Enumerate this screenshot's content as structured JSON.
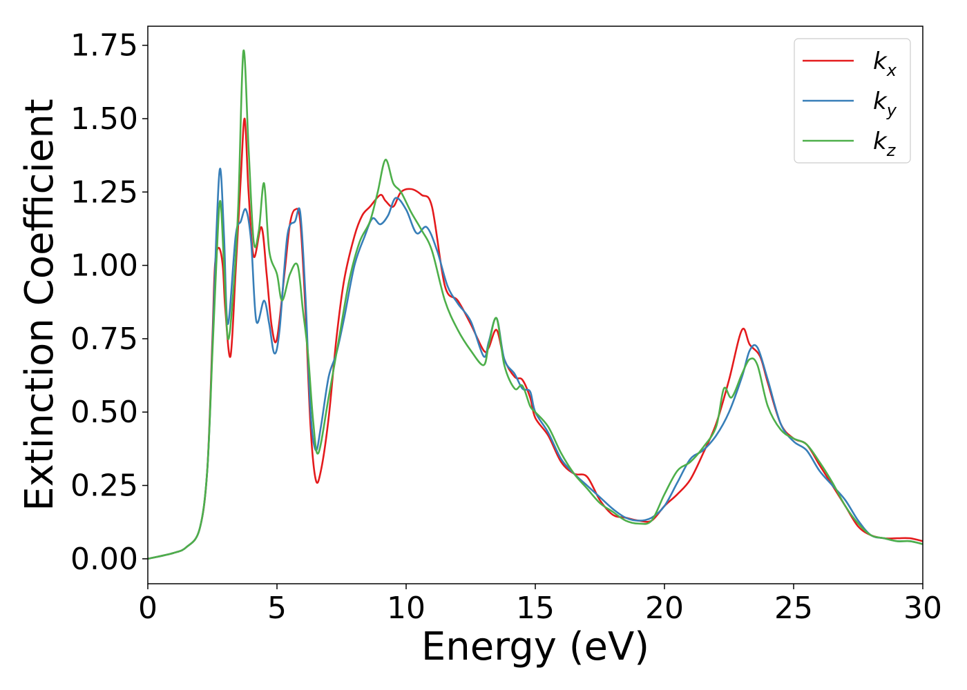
{
  "chart_data": {
    "type": "line",
    "title": "",
    "xlabel": "Energy (eV)",
    "ylabel": "Extinction Coefficient",
    "xlim": [
      0,
      30
    ],
    "ylim": [
      -0.085,
      1.815
    ],
    "xticks": [
      0,
      5,
      10,
      15,
      20,
      25,
      30
    ],
    "xtick_labels": [
      "0",
      "5",
      "10",
      "15",
      "20",
      "25",
      "30"
    ],
    "yticks": [
      0.0,
      0.25,
      0.5,
      0.75,
      1.0,
      1.25,
      1.5,
      1.75
    ],
    "ytick_labels": [
      "0.00",
      "0.25",
      "0.50",
      "0.75",
      "1.00",
      "1.25",
      "1.50",
      "1.75"
    ],
    "grid": false,
    "legend_position": "top-right",
    "series": [
      {
        "name": "k",
        "subscript": "x",
        "color": "#e41a1c",
        "x": [
          0,
          1,
          1.5,
          2,
          2.3,
          2.5,
          2.6,
          2.75,
          2.9,
          3.0,
          3.2,
          3.4,
          3.6,
          3.75,
          3.9,
          4.1,
          4.4,
          4.6,
          4.8,
          5.0,
          5.3,
          5.5,
          5.7,
          5.9,
          6.1,
          6.3,
          6.5,
          6.7,
          7.0,
          7.3,
          7.6,
          8.0,
          8.3,
          8.6,
          9.0,
          9.2,
          9.5,
          9.8,
          10.2,
          10.6,
          11.0,
          11.5,
          12.0,
          12.5,
          13.0,
          13.2,
          13.5,
          13.8,
          14.2,
          14.5,
          14.8,
          15.0,
          15.5,
          16.0,
          16.5,
          17.0,
          17.5,
          18.0,
          18.5,
          19.0,
          19.5,
          20.0,
          20.5,
          21.0,
          21.5,
          22.0,
          22.5,
          23.0,
          23.3,
          23.7,
          24.0,
          24.5,
          25.0,
          25.5,
          26.0,
          26.5,
          27.0,
          27.5,
          28.0,
          28.5,
          29.0,
          29.5,
          30.0
        ],
        "y": [
          0,
          0.02,
          0.04,
          0.1,
          0.3,
          0.75,
          1.0,
          1.06,
          1.0,
          0.85,
          0.69,
          0.98,
          1.3,
          1.5,
          1.25,
          1.03,
          1.13,
          0.97,
          0.79,
          0.75,
          0.98,
          1.14,
          1.19,
          1.15,
          0.85,
          0.45,
          0.27,
          0.3,
          0.48,
          0.75,
          0.95,
          1.1,
          1.17,
          1.2,
          1.24,
          1.22,
          1.2,
          1.25,
          1.26,
          1.24,
          1.2,
          0.93,
          0.88,
          0.8,
          0.71,
          0.72,
          0.78,
          0.68,
          0.62,
          0.61,
          0.55,
          0.48,
          0.42,
          0.33,
          0.29,
          0.28,
          0.2,
          0.15,
          0.14,
          0.13,
          0.13,
          0.18,
          0.22,
          0.27,
          0.36,
          0.46,
          0.61,
          0.78,
          0.73,
          0.69,
          0.6,
          0.46,
          0.41,
          0.39,
          0.32,
          0.25,
          0.18,
          0.11,
          0.08,
          0.07,
          0.07,
          0.07,
          0.06
        ]
      },
      {
        "name": "k",
        "subscript": "y",
        "color": "#377eb8",
        "x": [
          0,
          1,
          1.5,
          2,
          2.3,
          2.5,
          2.65,
          2.8,
          2.95,
          3.1,
          3.4,
          3.6,
          3.8,
          4.0,
          4.2,
          4.5,
          4.7,
          4.9,
          5.1,
          5.4,
          5.7,
          5.9,
          6.1,
          6.3,
          6.5,
          6.7,
          7.0,
          7.3,
          7.6,
          8.0,
          8.4,
          8.7,
          9.0,
          9.3,
          9.6,
          10.0,
          10.4,
          10.8,
          11.2,
          11.6,
          12.0,
          12.5,
          13.0,
          13.2,
          13.5,
          13.8,
          14.2,
          14.5,
          14.8,
          15.0,
          15.5,
          16.0,
          16.5,
          17.0,
          17.5,
          18.0,
          18.5,
          19.0,
          19.5,
          20.0,
          20.5,
          21.0,
          21.5,
          22.0,
          22.5,
          23.0,
          23.3,
          23.6,
          24.0,
          24.5,
          25.0,
          25.5,
          26.0,
          26.5,
          27.0,
          27.5,
          28.0,
          28.5,
          29.0,
          29.5,
          30.0
        ],
        "y": [
          0,
          0.02,
          0.04,
          0.1,
          0.3,
          0.72,
          1.1,
          1.33,
          1.1,
          0.8,
          1.1,
          1.15,
          1.19,
          1.08,
          0.81,
          0.88,
          0.8,
          0.7,
          0.78,
          1.1,
          1.15,
          1.18,
          0.9,
          0.5,
          0.37,
          0.45,
          0.62,
          0.7,
          0.82,
          1.0,
          1.1,
          1.16,
          1.14,
          1.17,
          1.23,
          1.19,
          1.11,
          1.13,
          1.05,
          0.93,
          0.87,
          0.81,
          0.69,
          0.74,
          0.82,
          0.68,
          0.63,
          0.58,
          0.57,
          0.5,
          0.43,
          0.34,
          0.29,
          0.25,
          0.21,
          0.17,
          0.14,
          0.13,
          0.14,
          0.18,
          0.26,
          0.34,
          0.37,
          0.42,
          0.5,
          0.62,
          0.71,
          0.72,
          0.61,
          0.46,
          0.4,
          0.37,
          0.3,
          0.25,
          0.2,
          0.13,
          0.08,
          0.07,
          0.06,
          0.06,
          0.05
        ]
      },
      {
        "name": "k",
        "subscript": "z",
        "color": "#4daf4a",
        "x": [
          0,
          1,
          1.5,
          2,
          2.3,
          2.5,
          2.65,
          2.8,
          2.95,
          3.1,
          3.3,
          3.5,
          3.7,
          3.9,
          4.1,
          4.3,
          4.5,
          4.7,
          5.0,
          5.2,
          5.5,
          5.8,
          6.0,
          6.2,
          6.4,
          6.6,
          7.0,
          7.4,
          7.8,
          8.2,
          8.6,
          8.9,
          9.2,
          9.5,
          9.8,
          10.2,
          10.6,
          11.0,
          11.5,
          12.0,
          12.5,
          13.0,
          13.2,
          13.5,
          13.8,
          14.2,
          14.5,
          14.8,
          15.0,
          15.5,
          16.0,
          16.5,
          17.0,
          17.5,
          18.0,
          18.5,
          19.0,
          19.5,
          20.0,
          20.5,
          21.0,
          21.5,
          22.0,
          22.3,
          22.6,
          23.0,
          23.3,
          23.6,
          24.0,
          24.5,
          25.0,
          25.5,
          26.0,
          26.5,
          27.0,
          27.5,
          28.0,
          28.5,
          29.0,
          29.5,
          30.0
        ],
        "y": [
          0,
          0.02,
          0.04,
          0.1,
          0.3,
          0.7,
          1.0,
          1.22,
          1.0,
          0.75,
          0.9,
          1.2,
          1.73,
          1.4,
          1.08,
          1.12,
          1.28,
          1.05,
          0.97,
          0.88,
          0.97,
          1.0,
          0.85,
          0.7,
          0.47,
          0.36,
          0.55,
          0.75,
          0.95,
          1.08,
          1.15,
          1.25,
          1.36,
          1.28,
          1.25,
          1.18,
          1.12,
          1.05,
          0.88,
          0.78,
          0.71,
          0.66,
          0.73,
          0.82,
          0.66,
          0.58,
          0.59,
          0.52,
          0.5,
          0.45,
          0.36,
          0.29,
          0.24,
          0.19,
          0.16,
          0.13,
          0.12,
          0.13,
          0.22,
          0.3,
          0.33,
          0.38,
          0.45,
          0.58,
          0.55,
          0.63,
          0.68,
          0.66,
          0.52,
          0.44,
          0.41,
          0.39,
          0.33,
          0.26,
          0.18,
          0.12,
          0.08,
          0.07,
          0.06,
          0.06,
          0.05
        ]
      }
    ]
  }
}
